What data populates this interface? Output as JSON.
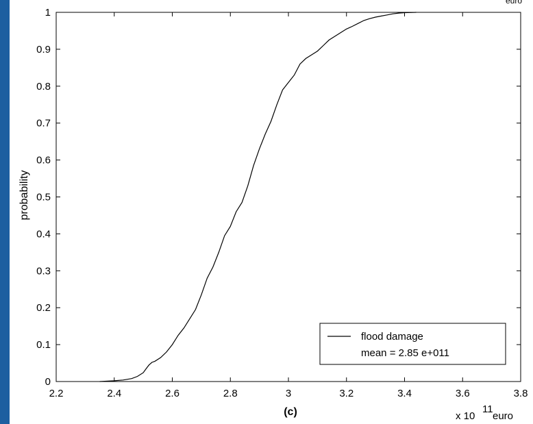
{
  "top_right_text": "euro",
  "chart_data": {
    "type": "line",
    "title": "",
    "xlabel": "(c)",
    "ylabel": "probability",
    "x_multiplier": "x 10",
    "x_multiplier_exponent": "11",
    "x_unit": "euro",
    "xlim": [
      2.2,
      3.8
    ],
    "ylim": [
      0,
      1
    ],
    "xticks": [
      "2.2",
      "2.4",
      "2.6",
      "2.8",
      "3",
      "3.2",
      "3.4",
      "3.6",
      "3.8"
    ],
    "yticks": [
      "0",
      "0.1",
      "0.2",
      "0.3",
      "0.4",
      "0.5",
      "0.6",
      "0.7",
      "0.8",
      "0.9",
      "1"
    ],
    "grid": false,
    "legend_position": "bottom-right",
    "legend": [
      "flood damage",
      "mean = 2.85 e+011"
    ],
    "series": [
      {
        "name": "flood damage",
        "x": [
          2.35,
          2.4,
          2.43,
          2.46,
          2.48,
          2.5,
          2.51,
          2.52,
          2.53,
          2.54,
          2.56,
          2.58,
          2.6,
          2.62,
          2.64,
          2.66,
          2.68,
          2.7,
          2.72,
          2.74,
          2.76,
          2.78,
          2.8,
          2.82,
          2.84,
          2.86,
          2.88,
          2.9,
          2.92,
          2.94,
          2.96,
          2.98,
          3.0,
          3.02,
          3.04,
          3.06,
          3.08,
          3.1,
          3.12,
          3.14,
          3.16,
          3.18,
          3.2,
          3.22,
          3.24,
          3.26,
          3.28,
          3.3,
          3.32,
          3.34,
          3.36,
          3.38,
          3.4,
          3.42,
          3.44
        ],
        "y": [
          0.0,
          0.002,
          0.004,
          0.008,
          0.014,
          0.024,
          0.035,
          0.045,
          0.052,
          0.055,
          0.065,
          0.08,
          0.1,
          0.125,
          0.145,
          0.17,
          0.195,
          0.235,
          0.28,
          0.31,
          0.35,
          0.395,
          0.42,
          0.46,
          0.485,
          0.53,
          0.585,
          0.63,
          0.67,
          0.705,
          0.75,
          0.79,
          0.81,
          0.83,
          0.86,
          0.875,
          0.885,
          0.895,
          0.91,
          0.925,
          0.935,
          0.945,
          0.955,
          0.962,
          0.97,
          0.978,
          0.983,
          0.987,
          0.99,
          0.993,
          0.996,
          0.998,
          0.999,
          0.9995,
          1.0
        ]
      }
    ]
  }
}
